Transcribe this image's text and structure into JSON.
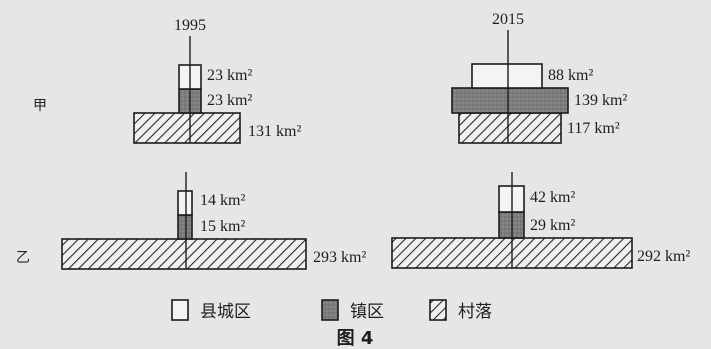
{
  "years": {
    "left": "1995",
    "right": "2015"
  },
  "rows": {
    "jia": "甲",
    "yi": "乙"
  },
  "values": {
    "jia_1995": {
      "county": "23 km²",
      "town": "23 km²",
      "village": "131 km²"
    },
    "jia_2015": {
      "county": "88 km²",
      "town": "139 km²",
      "village": "117 km²"
    },
    "yi_1995": {
      "county": "14 km²",
      "town": "15 km²",
      "village": "293 km²"
    },
    "yi_2015": {
      "county": "42 km²",
      "town": "29 km²",
      "village": "292 km²"
    }
  },
  "legend": {
    "county": "县城区",
    "town": "镇区",
    "village": "村落"
  },
  "caption": "图 4",
  "colors": {
    "background": "#e6e6e4",
    "town_fill": "#7d7d7d",
    "line": "#1c1c1c"
  }
}
